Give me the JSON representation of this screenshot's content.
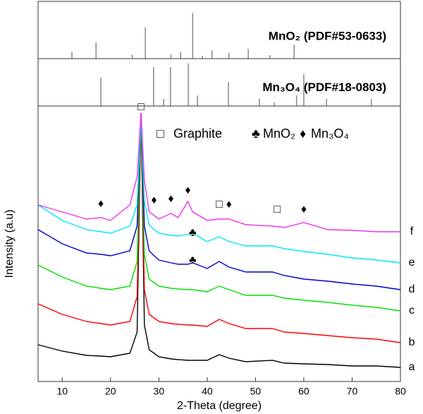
{
  "chart_data": [
    {
      "type": "stick",
      "label": "MnO₂ (PDF#53-0633)",
      "color": "#888888",
      "x": [
        12,
        17,
        24.5,
        27.2,
        32.5,
        34.5,
        37,
        39,
        41,
        44.5,
        48.5,
        53,
        58
      ],
      "values": [
        12,
        28,
        7,
        55,
        7,
        12,
        80,
        5,
        15,
        10,
        17,
        6,
        24
      ],
      "xlim": [
        5,
        80
      ],
      "ylim": [
        0,
        100
      ]
    },
    {
      "type": "stick",
      "label": "Mn₃O₄ (PDF#18-0803)",
      "color": "#888888",
      "x": [
        18,
        28.9,
        31,
        32.4,
        36.1,
        38,
        44.4,
        50.8,
        53.9,
        58.5,
        60,
        64.7,
        74
      ],
      "values": [
        60,
        82,
        15,
        82,
        90,
        22,
        51,
        15,
        7,
        22,
        67,
        15,
        15
      ],
      "xlim": [
        5,
        80
      ],
      "ylim": [
        0,
        100
      ]
    },
    {
      "type": "line",
      "xlabel": "2-Theta (degree)",
      "ylabel": "Intensity (a.u)",
      "xlim": [
        5,
        80
      ],
      "ylim": [
        0,
        390
      ],
      "xticks": [
        10,
        20,
        30,
        40,
        50,
        60,
        70,
        80
      ],
      "x": [
        5,
        10,
        15,
        18,
        20,
        24,
        25.5,
        26.3,
        27,
        28,
        29,
        30,
        32.5,
        34,
        36,
        37,
        40,
        42.5,
        44.5,
        48,
        53.5,
        56,
        60,
        65,
        70,
        75,
        80
      ],
      "series": [
        {
          "name": "a",
          "color": "#000000",
          "values": [
            52,
            43,
            37,
            36,
            35,
            40,
            70,
            380,
            80,
            45,
            40,
            35,
            32,
            31,
            30,
            30,
            30,
            38,
            33,
            28,
            30,
            26,
            25,
            24,
            22,
            22,
            20
          ]
        },
        {
          "name": "b",
          "color": "#ff0000",
          "values": [
            110,
            95,
            85,
            82,
            80,
            85,
            120,
            375,
            130,
            95,
            90,
            85,
            82,
            81,
            80,
            80,
            78,
            88,
            82,
            75,
            75,
            70,
            68,
            65,
            62,
            60,
            55
          ]
        },
        {
          "name": "c",
          "color": "#00e000",
          "values": [
            165,
            148,
            135,
            132,
            130,
            135,
            170,
            375,
            180,
            145,
            140,
            135,
            132,
            131,
            130,
            130,
            127,
            135,
            130,
            122,
            122,
            118,
            115,
            112,
            108,
            105,
            100
          ]
        },
        {
          "name": "d",
          "color": "#0000cc",
          "values": [
            215,
            195,
            182,
            180,
            178,
            185,
            220,
            380,
            220,
            185,
            178,
            172,
            168,
            166,
            166,
            168,
            160,
            170,
            162,
            155,
            155,
            150,
            145,
            142,
            138,
            135,
            130
          ]
        },
        {
          "name": "e",
          "color": "#00e5ff",
          "values": [
            250,
            228,
            215,
            212,
            210,
            220,
            250,
            375,
            255,
            222,
            215,
            210,
            207,
            206,
            208,
            210,
            198,
            205,
            198,
            192,
            192,
            188,
            184,
            180,
            175,
            172,
            168
          ]
        },
        {
          "name": "f",
          "color": "#ee33ee",
          "values": [
            250,
            240,
            230,
            232,
            228,
            250,
            290,
            380,
            285,
            240,
            235,
            230,
            238,
            232,
            255,
            240,
            228,
            230,
            230,
            222,
            220,
            218,
            225,
            215,
            214,
            212,
            212
          ]
        }
      ],
      "legend": [
        {
          "symbol": "□",
          "label": "Graphite"
        },
        {
          "symbol": "♣",
          "label": "MnO₂"
        },
        {
          "symbol": "♦",
          "label": "Mn₃O₄"
        }
      ],
      "annotations": [
        {
          "symbol": "♦",
          "x": 18,
          "y": 243
        },
        {
          "symbol": "♦",
          "x": 29,
          "y": 248
        },
        {
          "symbol": "♦",
          "x": 32.5,
          "y": 250
        },
        {
          "symbol": "♦",
          "x": 36,
          "y": 262
        },
        {
          "symbol": "♦",
          "x": 44.5,
          "y": 242
        },
        {
          "symbol": "♦",
          "x": 60,
          "y": 235
        },
        {
          "symbol": "□",
          "x": 26.3,
          "y": 380
        },
        {
          "symbol": "□",
          "x": 42.5,
          "y": 242
        },
        {
          "symbol": "□",
          "x": 54.5,
          "y": 235
        },
        {
          "symbol": "♣",
          "x": 37,
          "y": 202
        },
        {
          "symbol": "♣",
          "x": 37,
          "y": 163
        }
      ]
    }
  ]
}
